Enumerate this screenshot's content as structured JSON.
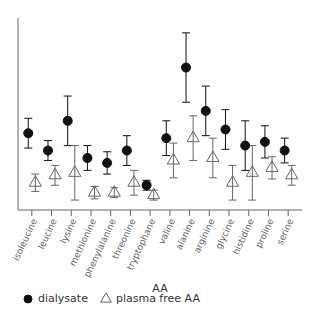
{
  "chart_data": {
    "type": "scatter",
    "xlabel": "AA",
    "categories": [
      "isoleucine",
      "leucine",
      "lysine",
      "methionine",
      "phenylalanine",
      "threonine",
      "tryptophane",
      "valine",
      "alanine",
      "arginine",
      "glycine",
      "histidine",
      "proline",
      "serine"
    ],
    "series": [
      {
        "name": "dialysate",
        "color": "#111111",
        "marker": "circle",
        "values": [
          62,
          48,
          72,
          42,
          38,
          48,
          20,
          58,
          115,
          80,
          65,
          52,
          55,
          48
        ],
        "errors": [
          12,
          8,
          20,
          10,
          9,
          12,
          4,
          14,
          28,
          20,
          16,
          20,
          13,
          10
        ]
      },
      {
        "name": "plasma free AA",
        "color": "#666666",
        "marker": "triangle",
        "values": [
          22,
          28,
          30,
          14,
          14,
          22,
          12,
          40,
          58,
          42,
          22,
          30,
          34,
          28
        ],
        "errors": [
          7,
          8,
          22,
          5,
          4,
          10,
          4,
          14,
          18,
          16,
          14,
          22,
          9,
          8
        ]
      }
    ],
    "ylim": [
      0,
      155
    ],
    "tick_labels": "x",
    "legend": "lower left"
  }
}
